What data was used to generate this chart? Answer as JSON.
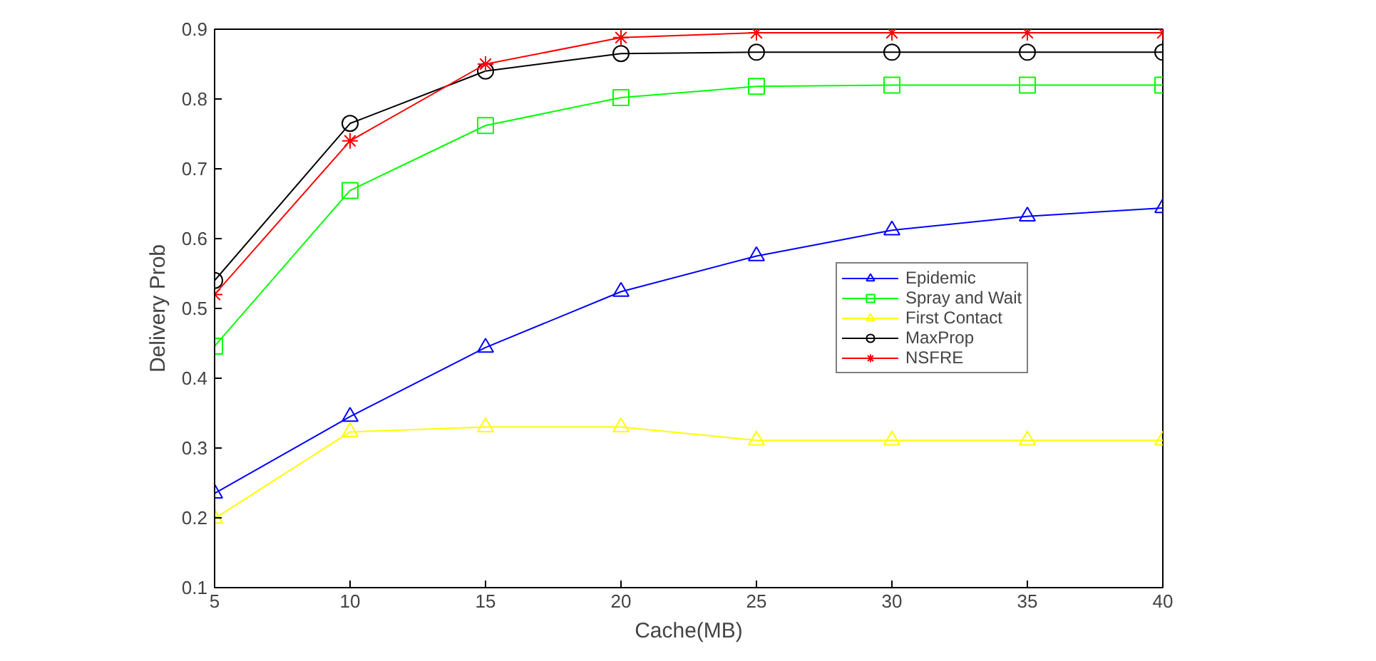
{
  "chart_data": {
    "type": "line",
    "xlabel": "Cache(MB)",
    "ylabel": "Delivery Prob",
    "x": [
      5,
      10,
      15,
      20,
      25,
      30,
      35,
      40
    ],
    "series": [
      {
        "name": "Epidemic",
        "color": "#0000ff",
        "marker": "triangle",
        "values": [
          0.235,
          0.345,
          0.444,
          0.524,
          0.575,
          0.612,
          0.632,
          0.644
        ]
      },
      {
        "name": "Spray and Wait",
        "color": "#00ff00",
        "marker": "square",
        "values": [
          0.446,
          0.669,
          0.762,
          0.802,
          0.818,
          0.82,
          0.82,
          0.82
        ]
      },
      {
        "name": "First Contact",
        "color": "#ffff00",
        "marker": "triangle",
        "values": [
          0.199,
          0.323,
          0.33,
          0.33,
          0.311,
          0.311,
          0.311,
          0.311
        ]
      },
      {
        "name": "MaxProp",
        "color": "#000000",
        "marker": "circle",
        "values": [
          0.54,
          0.765,
          0.84,
          0.865,
          0.867,
          0.867,
          0.867,
          0.867
        ]
      },
      {
        "name": "NSFRE",
        "color": "#ff0000",
        "marker": "cross",
        "values": [
          0.52,
          0.74,
          0.85,
          0.888,
          0.895,
          0.895,
          0.895,
          0.895
        ]
      }
    ],
    "xlim": [
      5,
      40
    ],
    "xticks": [
      5,
      10,
      15,
      20,
      25,
      30,
      35,
      40
    ],
    "ylim": [
      0.1,
      0.9
    ],
    "yticks": [
      0.1,
      0.2,
      0.3,
      0.4,
      0.5,
      0.6,
      0.7,
      0.8,
      0.9
    ],
    "grid": false,
    "legend": "right",
    "line_style": "solid"
  }
}
